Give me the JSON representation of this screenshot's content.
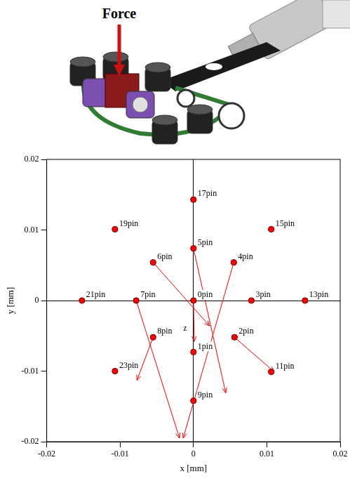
{
  "illustration": {
    "label": "Force"
  },
  "chart_data": {
    "type": "scatter",
    "x_label": "x [mm]",
    "y_label": "y [mm]",
    "xlim": [
      -0.02,
      0.02
    ],
    "ylim": [
      -0.02,
      0.02
    ],
    "xticks": [
      -0.02,
      -0.01,
      0,
      0.01,
      0.02
    ],
    "yticks": [
      -0.02,
      -0.01,
      0,
      0.01,
      0.02
    ],
    "grid": false,
    "color": "#ff0000",
    "marker": "circle",
    "annotation": "z",
    "points": {
      "labels": [
        "0pin",
        "1pin",
        "2pin",
        "3pin",
        "4pin",
        "5pin",
        "6pin",
        "7pin",
        "8pin",
        "9pin",
        "11pin",
        "13pin",
        "15pin",
        "17pin",
        "19pin",
        "21pin",
        "23pin"
      ],
      "x": [
        0,
        0,
        0.0056,
        0.0079,
        0.0055,
        0,
        -0.0055,
        -0.0078,
        -0.0055,
        0,
        0.0106,
        0.0152,
        0.0106,
        0,
        -0.0107,
        -0.0152,
        -0.0107
      ],
      "y": [
        0,
        -0.0073,
        -0.0052,
        0,
        0.0054,
        0.0074,
        0.0054,
        0,
        -0.0052,
        -0.0142,
        -0.0101,
        0,
        0.0101,
        0.0143,
        0.0101,
        0,
        -0.01
      ],
      "arrow_end_x": [
        0.0001,
        null,
        0.011,
        null,
        -0.0014,
        0.0044,
        0.0022,
        -0.0019,
        -0.0077,
        null,
        null,
        null,
        null,
        null,
        null,
        null,
        null
      ],
      "arrow_end_y": [
        -0.0058,
        null,
        -0.0101,
        null,
        -0.0195,
        -0.0131,
        -0.0036,
        -0.0195,
        -0.0113,
        null,
        null,
        null,
        null,
        null,
        null,
        null,
        null
      ]
    }
  }
}
